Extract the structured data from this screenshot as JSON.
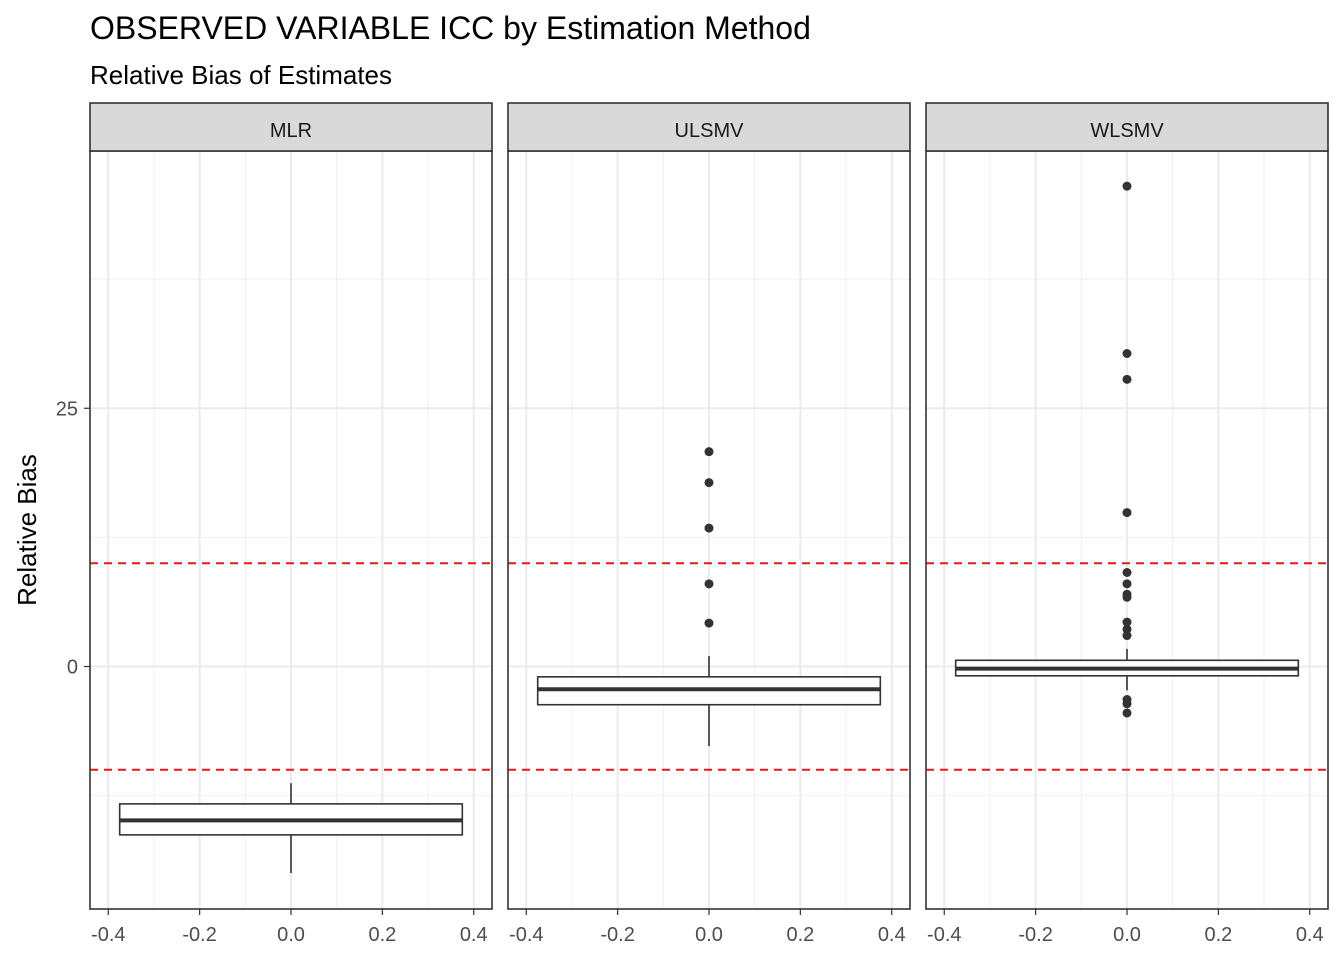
{
  "title": "OBSERVED VARIABLE ICC by Estimation Method",
  "subtitle": "Relative Bias of Estimates",
  "chart_data": {
    "type": "boxplot",
    "ylabel": "Relative Bias",
    "xlabel": "",
    "xlim": [
      -0.4,
      0.4
    ],
    "ylim": [
      -23.5,
      50
    ],
    "x_ticks": [
      "-0.4",
      "-0.2",
      "0.0",
      "0.2",
      "0.4"
    ],
    "x_tick_values": [
      -0.4,
      -0.2,
      0.0,
      0.2,
      0.4
    ],
    "y_ticks": [
      "0",
      "25"
    ],
    "y_tick_values": [
      0,
      25
    ],
    "reference_lines": {
      "values": [
        -10,
        10
      ],
      "style": "dashed",
      "color": "#e41a1c"
    },
    "grid": true,
    "panels": [
      {
        "name": "MLR",
        "q1": -16.3,
        "median": -14.9,
        "q3": -13.3,
        "whisker_low": -20.0,
        "whisker_high": -11.3,
        "outliers": []
      },
      {
        "name": "ULSMV",
        "q1": -3.7,
        "median": -2.2,
        "q3": -1.0,
        "whisker_low": -7.7,
        "whisker_high": 1.0,
        "outliers": [
          20.8,
          17.8,
          13.4,
          8.0,
          4.2
        ]
      },
      {
        "name": "WLSMV",
        "q1": -0.9,
        "median": -0.2,
        "q3": 0.6,
        "whisker_low": -2.3,
        "whisker_high": 1.7,
        "outliers": [
          46.5,
          30.3,
          27.8,
          14.9,
          9.1,
          8.0,
          7.0,
          6.7,
          4.3,
          3.6,
          3.0,
          -3.2,
          -3.6,
          -4.5
        ]
      }
    ]
  }
}
